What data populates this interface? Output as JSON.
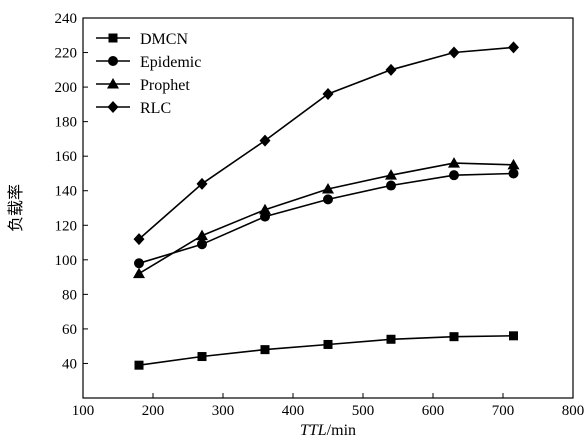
{
  "chart_data": {
    "type": "line",
    "xlabel": {
      "italic": "TTL",
      "rest": "/min"
    },
    "ylabel": "负载率",
    "xlim": [
      100,
      800
    ],
    "ylim": [
      20,
      240
    ],
    "xticks": [
      100,
      200,
      300,
      400,
      500,
      600,
      700,
      800
    ],
    "yticks": [
      40,
      60,
      80,
      100,
      120,
      140,
      160,
      180,
      200,
      220,
      240
    ],
    "x": [
      180,
      270,
      360,
      450,
      540,
      630,
      715
    ],
    "legend_position": "top-left",
    "series": [
      {
        "name": "DMCN",
        "marker": "square",
        "values": [
          39,
          44,
          48,
          51,
          54,
          55.5,
          56
        ]
      },
      {
        "name": "Epidemic",
        "marker": "circle",
        "values": [
          98,
          109,
          125,
          135,
          143,
          149,
          150
        ]
      },
      {
        "name": "Prophet",
        "marker": "triangle",
        "values": [
          92,
          114,
          129,
          141,
          149,
          156,
          155
        ]
      },
      {
        "name": "RLC",
        "marker": "diamond",
        "values": [
          112,
          144,
          169,
          196,
          210,
          220,
          223
        ]
      }
    ],
    "grid": false,
    "line_color": "#000000"
  }
}
